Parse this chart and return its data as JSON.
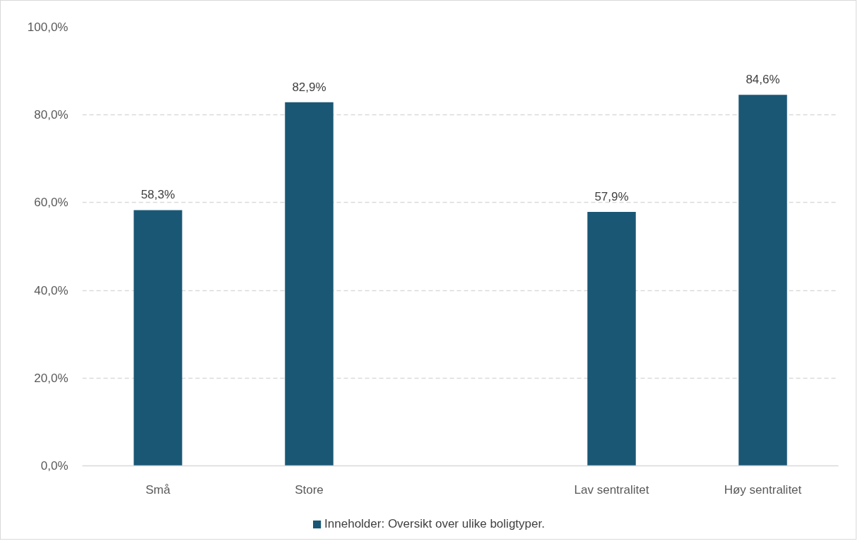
{
  "chart_data": {
    "type": "bar",
    "categories": [
      "Små",
      "Store",
      null,
      "Lav sentralitet",
      "Høy sentralitet"
    ],
    "series": [
      {
        "name": "Inneholder: Oversikt over ulike boligtyper.",
        "color": "#1a5775",
        "values": [
          58.3,
          82.9,
          null,
          57.9,
          84.6
        ],
        "value_labels": [
          "58,3%",
          "82,9%",
          null,
          "57,9%",
          "84,6%"
        ]
      }
    ],
    "ylim": [
      0,
      100
    ],
    "yticks": [
      {
        "value": 0,
        "label": "0,0%"
      },
      {
        "value": 20,
        "label": "20,0%"
      },
      {
        "value": 40,
        "label": "40,0%"
      },
      {
        "value": 60,
        "label": "60,0%"
      },
      {
        "value": 80,
        "label": "80,0%"
      },
      {
        "value": 100,
        "label": "100,0%"
      }
    ],
    "grid": "y",
    "legend": "bottom"
  }
}
